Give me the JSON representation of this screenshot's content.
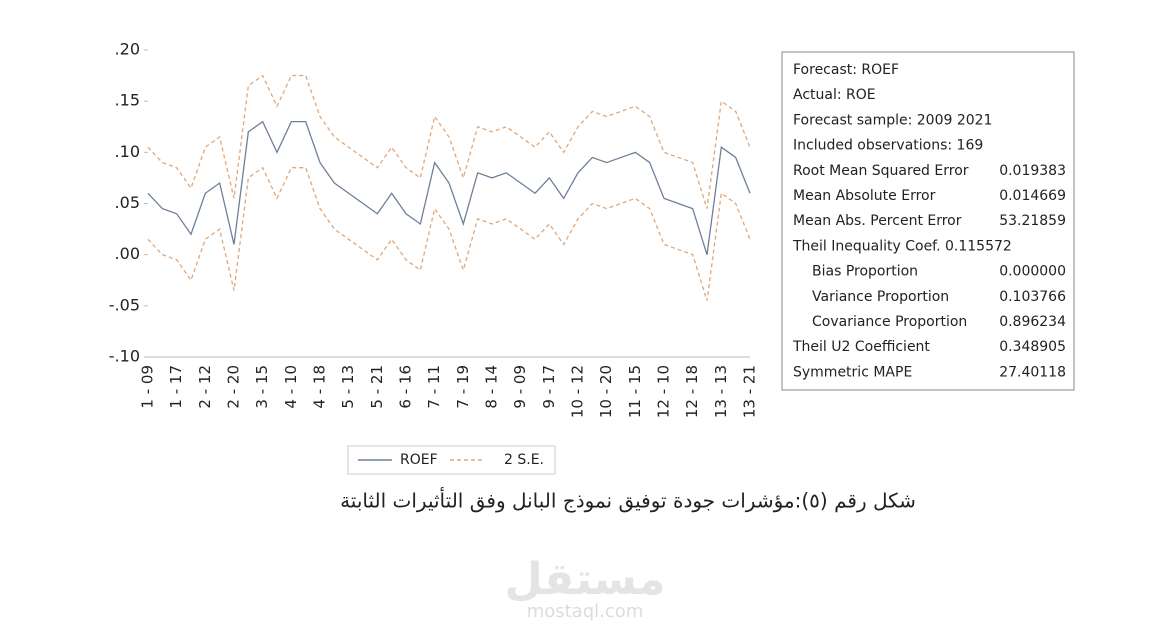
{
  "chart_data": {
    "type": "line",
    "categories": [
      "1 - 09",
      null,
      "1 - 17",
      null,
      "2 - 12",
      null,
      "2 - 20",
      null,
      "3 - 15",
      null,
      "4 - 10",
      null,
      "4 - 18",
      null,
      "5 - 13",
      null,
      "5 - 21",
      null,
      "6 - 16",
      null,
      "7 - 11",
      null,
      "7 - 19",
      null,
      "8 - 14",
      null,
      "9 - 09",
      null,
      "9 - 17",
      null,
      "10 - 12",
      null,
      "10 - 20",
      null,
      "11 - 15",
      null,
      "12 - 10",
      null,
      "12 - 18",
      null,
      "13 - 13",
      null,
      "13 - 21"
    ],
    "series": [
      {
        "name": "ROEF",
        "color": "#6f7f99",
        "dash": false,
        "values": [
          0.06,
          0.045,
          0.04,
          0.02,
          0.06,
          0.07,
          0.01,
          0.12,
          0.13,
          0.1,
          0.13,
          0.13,
          0.09,
          0.07,
          0.06,
          0.05,
          0.04,
          0.06,
          0.04,
          0.03,
          0.09,
          0.07,
          0.03,
          0.08,
          0.075,
          0.08,
          0.07,
          0.06,
          0.075,
          0.055,
          0.08,
          0.095,
          0.09,
          0.095,
          0.1,
          0.09,
          0.055,
          0.05,
          0.045,
          0.0,
          0.105,
          0.095,
          0.06
        ]
      },
      {
        "name": "2 S.E.",
        "color": "#e0a77a",
        "dash": true,
        "values": [
          0.105,
          0.09,
          0.085,
          0.065,
          0.105,
          0.115,
          0.055,
          0.165,
          0.175,
          0.145,
          0.175,
          0.175,
          0.135,
          0.115,
          0.105,
          0.095,
          0.085,
          0.105,
          0.085,
          0.075,
          0.135,
          0.115,
          0.075,
          0.125,
          0.12,
          0.125,
          0.115,
          0.105,
          0.12,
          0.1,
          0.125,
          0.14,
          0.135,
          0.14,
          0.145,
          0.135,
          0.1,
          0.095,
          0.09,
          0.045,
          0.15,
          0.14,
          0.105
        ],
        "lower_values": [
          0.015,
          0,
          -0.005,
          -0.025,
          0.015,
          0.025,
          -0.035,
          0.075,
          0.085,
          0.055,
          0.085,
          0.085,
          0.045,
          0.025,
          0.015,
          0.005,
          -0.005,
          0.015,
          -0.005,
          -0.015,
          0.045,
          0.025,
          -0.015,
          0.035,
          0.03,
          0.035,
          0.025,
          0.015,
          0.03,
          0.01,
          0.035,
          0.05,
          0.045,
          0.05,
          0.055,
          0.045,
          0.01,
          0.005,
          0,
          -0.045,
          0.06,
          0.05,
          0.015
        ]
      }
    ],
    "ylim": [
      -0.1,
      0.2
    ],
    "yticks": [
      {
        "value": 0.2,
        "label": ".20"
      },
      {
        "value": 0.15,
        "label": ".15"
      },
      {
        "value": 0.1,
        "label": ".10"
      },
      {
        "value": 0.05,
        "label": ".05"
      },
      {
        "value": 0,
        "label": ".00"
      },
      {
        "value": -0.05,
        "label": "-.05"
      },
      {
        "value": -0.1,
        "label": "-.10"
      }
    ]
  },
  "stats": {
    "rows": [
      {
        "label": "Forecast: ROEF"
      },
      {
        "label": "Actual: ROE"
      },
      {
        "label": "Forecast sample: 2009 2021"
      },
      {
        "label": "Included observations: 169"
      },
      {
        "label": "Root Mean Squared Error",
        "value": "0.019383"
      },
      {
        "label": "Mean Absolute Error",
        "value": "0.014669"
      },
      {
        "label": "Mean Abs. Percent Error",
        "value": "53.21859"
      },
      {
        "label": "Theil Inequality Coef.  0.115572"
      },
      {
        "label": "Bias Proportion",
        "value": "0.000000",
        "indent": true
      },
      {
        "label": "Variance Proportion",
        "value": "0.103766",
        "indent": true
      },
      {
        "label": "Covariance Proportion",
        "value": "0.896234",
        "indent": true
      },
      {
        "label": "Theil U2 Coefficient",
        "value": "0.348905"
      },
      {
        "label": "Symmetric MAPE",
        "value": "27.40118"
      }
    ]
  },
  "caption": "شكل رقم (٥):مؤشرات جودة توفيق نموذج البانل وفق التأثيرات الثابتة",
  "watermark": {
    "logo": "مستقل",
    "url": "mostaql.com"
  }
}
